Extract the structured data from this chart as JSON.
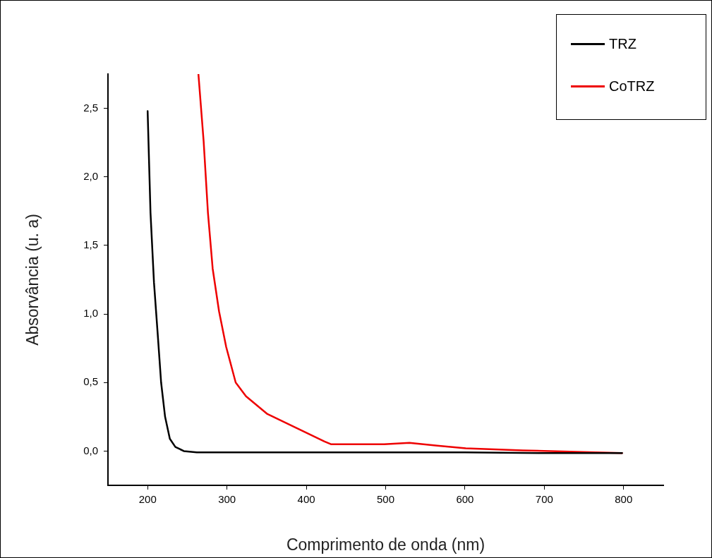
{
  "chart_data": {
    "type": "line",
    "xlabel": "Comprimento de onda (nm)",
    "ylabel": "Absorvância (u. a)",
    "xlim": [
      150,
      850
    ],
    "xticks": [
      200,
      300,
      400,
      500,
      600,
      700,
      800
    ],
    "ylim": [
      -0.25,
      2.75
    ],
    "yticks": [
      {
        "value": 0,
        "label": "0,0"
      },
      {
        "value": 0.5,
        "label": "0,5"
      },
      {
        "value": 1,
        "label": "1,0"
      },
      {
        "value": 1.5,
        "label": "1,5"
      },
      {
        "value": 2,
        "label": "2,0"
      },
      {
        "value": 2.5,
        "label": "2,5"
      }
    ],
    "grid": false,
    "legend": "top right",
    "marker": "none",
    "line_style": "solid",
    "series": [
      {
        "name": "TRZ",
        "color": "#000000",
        "x": [
          200,
          203.6,
          208,
          212.5,
          217,
          222,
          228,
          235,
          245.6,
          262,
          400,
          600,
          700,
          798
        ],
        "values": [
          2.48,
          1.74,
          1.23,
          0.87,
          0.5,
          0.25,
          0.09,
          0.03,
          0.0,
          -0.01,
          -0.01,
          -0.01,
          -0.015,
          -0.015
        ]
      },
      {
        "name": "CoTRZ",
        "color": "#ee0000",
        "x": [
          264,
          270.6,
          276,
          282,
          290,
          299,
          311,
          324,
          351,
          387,
          423,
          431,
          498,
          530,
          565,
          601,
          673,
          798
        ],
        "values": [
          2.75,
          2.26,
          1.74,
          1.33,
          1.02,
          0.76,
          0.5,
          0.4,
          0.27,
          0.17,
          0.07,
          0.05,
          0.05,
          0.06,
          0.04,
          0.02,
          0.005,
          -0.015
        ]
      }
    ]
  }
}
